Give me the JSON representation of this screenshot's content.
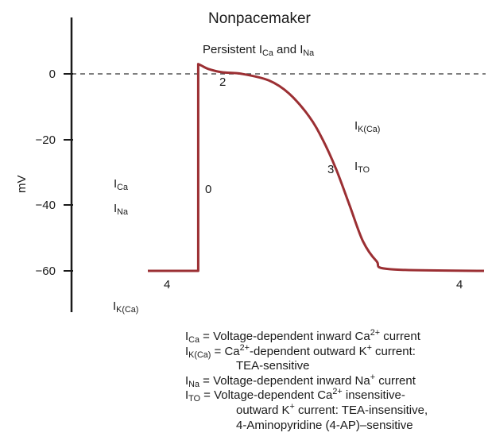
{
  "title": "Nonpacemaker",
  "y_axis": {
    "label": "mV",
    "ticks": [
      "0",
      "−20",
      "−40",
      "−60"
    ],
    "values": [
      0,
      -20,
      -40,
      -60
    ],
    "range": [
      -70,
      18
    ]
  },
  "annotations": {
    "persistent_prefix": "Persistent I",
    "persistent_sub1": "Ca",
    "persistent_mid": " and I",
    "persistent_sub2": "Na",
    "phase_0": "0",
    "phase_2": "2",
    "phase_3": "3",
    "phase_4_left": "4",
    "phase_4_right": "4",
    "ica_I": "I",
    "ica_sub": "Ca",
    "ina_I": "I",
    "ina_sub": "Na",
    "ikca_bottom_I": "I",
    "ikca_bottom_sub": "K(Ca)",
    "ikca_top_I": "I",
    "ikca_top_sub": "K(Ca)",
    "ito_I": "I",
    "ito_sub": "TO"
  },
  "legend": {
    "row1": {
      "I": "I",
      "sub": "Ca",
      "text": " = Voltage-dependent inward Ca",
      "sup": "2+",
      "tail": " current"
    },
    "row2": {
      "I": "I",
      "sub": "K(Ca)",
      "text": " = Ca",
      "sup": "2+",
      "mid": "-dependent outward K",
      "sup2": "+",
      "tail": " current:"
    },
    "row2b": "TEA-sensitive",
    "row3": {
      "I": "I",
      "sub": "Na",
      "text": " = Voltage-dependent inward Na",
      "sup": "+",
      "tail": " current"
    },
    "row4": {
      "I": "I",
      "sub": "TO",
      "text": " = Voltage-dependent Ca",
      "sup": "2+",
      "tail": " insensitive-"
    },
    "row4b": "outward K",
    "row4b_sup": "+",
    "row4b_tail": " current: TEA-insensitive,",
    "row4c": "4-Aminopyridine (4-AP)–sensitive"
  },
  "colors": {
    "trace": "#9b2f33",
    "axis": "#1a1a1a",
    "zero_line": "#555555"
  },
  "chart_data": {
    "type": "line",
    "series": [
      {
        "x": [
          0,
          15,
          15,
          16,
          18,
          22,
          28,
          36,
          42,
          48,
          52,
          56,
          60,
          64,
          68,
          72,
          100
        ],
        "y": [
          -60,
          -60,
          3,
          2.5,
          1.5,
          0.5,
          0,
          -2,
          -6,
          -13,
          -20,
          -29,
          -40,
          -51,
          -57,
          -59.5,
          -60
        ]
      }
    ],
    "ylabel": "mV",
    "ylim": [
      -70,
      18
    ],
    "yticks": [
      0,
      -20,
      -40,
      -60
    ],
    "reference_line": 0
  }
}
